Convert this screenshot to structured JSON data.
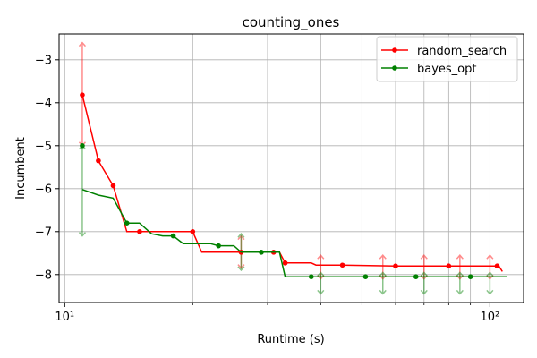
{
  "chart_data": {
    "type": "line",
    "title": "counting_ones",
    "xlabel": "Runtime (s)",
    "ylabel": "Incumbent",
    "xscale": "log",
    "xlim": [
      9.7,
      120
    ],
    "ylim": [
      -8.65,
      -2.4
    ],
    "x_ticks": [
      {
        "value": 10,
        "label": "10¹"
      },
      {
        "value": 100,
        "label": "10²"
      }
    ],
    "x_minor_ticks": [
      20,
      30,
      40,
      50,
      60,
      70,
      80,
      90
    ],
    "y_ticks": [
      -3,
      -4,
      -5,
      -6,
      -7,
      -8
    ],
    "y_tick_labels": [
      "−3",
      "−4",
      "−5",
      "−6",
      "−7",
      "−8"
    ],
    "grid": true,
    "legend_position": "top-right",
    "series": [
      {
        "name": "random_search",
        "color": "#ff0000",
        "line": [
          [
            11,
            -3.82
          ],
          [
            12,
            -5.35
          ],
          [
            13,
            -5.93
          ],
          [
            14,
            -7.0
          ],
          [
            20,
            -7.0
          ],
          [
            21,
            -7.48
          ],
          [
            32,
            -7.48
          ],
          [
            33,
            -7.73
          ],
          [
            38,
            -7.73
          ],
          [
            39,
            -7.78
          ],
          [
            45,
            -7.78
          ],
          [
            60,
            -7.8
          ],
          [
            105,
            -7.8
          ],
          [
            107,
            -7.93
          ]
        ],
        "markers": [
          [
            11,
            -3.82
          ],
          [
            12,
            -5.35
          ],
          [
            13,
            -5.93
          ],
          [
            15,
            -7.0
          ],
          [
            20,
            -7.0
          ],
          [
            26,
            -7.48
          ],
          [
            31,
            -7.48
          ],
          [
            33,
            -7.73
          ],
          [
            45,
            -7.78
          ],
          [
            60,
            -7.8
          ],
          [
            80,
            -7.8
          ],
          [
            104,
            -7.8
          ]
        ],
        "band": [
          [
            11,
            -2.6,
            -5.0
          ],
          [
            26,
            -7.1,
            -7.85
          ],
          [
            40,
            -7.55,
            -8.1
          ],
          [
            56,
            -7.55,
            -8.1
          ],
          [
            70,
            -7.55,
            -8.1
          ],
          [
            85,
            -7.55,
            -8.1
          ],
          [
            100,
            -7.55,
            -8.1
          ]
        ]
      },
      {
        "name": "bayes_opt",
        "color": "#008000",
        "line": [
          [
            11,
            -6.02
          ],
          [
            12,
            -6.15
          ],
          [
            13,
            -6.22
          ],
          [
            14,
            -6.8
          ],
          [
            15,
            -6.8
          ],
          [
            16,
            -7.05
          ],
          [
            17,
            -7.1
          ],
          [
            18,
            -7.1
          ],
          [
            19,
            -7.28
          ],
          [
            22,
            -7.28
          ],
          [
            23,
            -7.33
          ],
          [
            25,
            -7.33
          ],
          [
            26,
            -7.48
          ],
          [
            32,
            -7.48
          ],
          [
            33,
            -8.05
          ],
          [
            110,
            -8.05
          ]
        ],
        "markers": [
          [
            11,
            -5.0
          ],
          [
            14,
            -6.8
          ],
          [
            18,
            -7.1
          ],
          [
            23,
            -7.33
          ],
          [
            29,
            -7.48
          ],
          [
            38,
            -8.05
          ],
          [
            51,
            -8.05
          ],
          [
            67,
            -8.05
          ],
          [
            90,
            -8.05
          ]
        ],
        "band": [
          [
            11,
            -5.0,
            -7.1
          ],
          [
            26,
            -7.05,
            -7.9
          ],
          [
            40,
            -7.95,
            -8.45
          ],
          [
            56,
            -7.95,
            -8.45
          ],
          [
            70,
            -7.95,
            -8.45
          ],
          [
            85,
            -7.95,
            -8.45
          ],
          [
            100,
            -7.95,
            -8.45
          ]
        ]
      }
    ]
  }
}
